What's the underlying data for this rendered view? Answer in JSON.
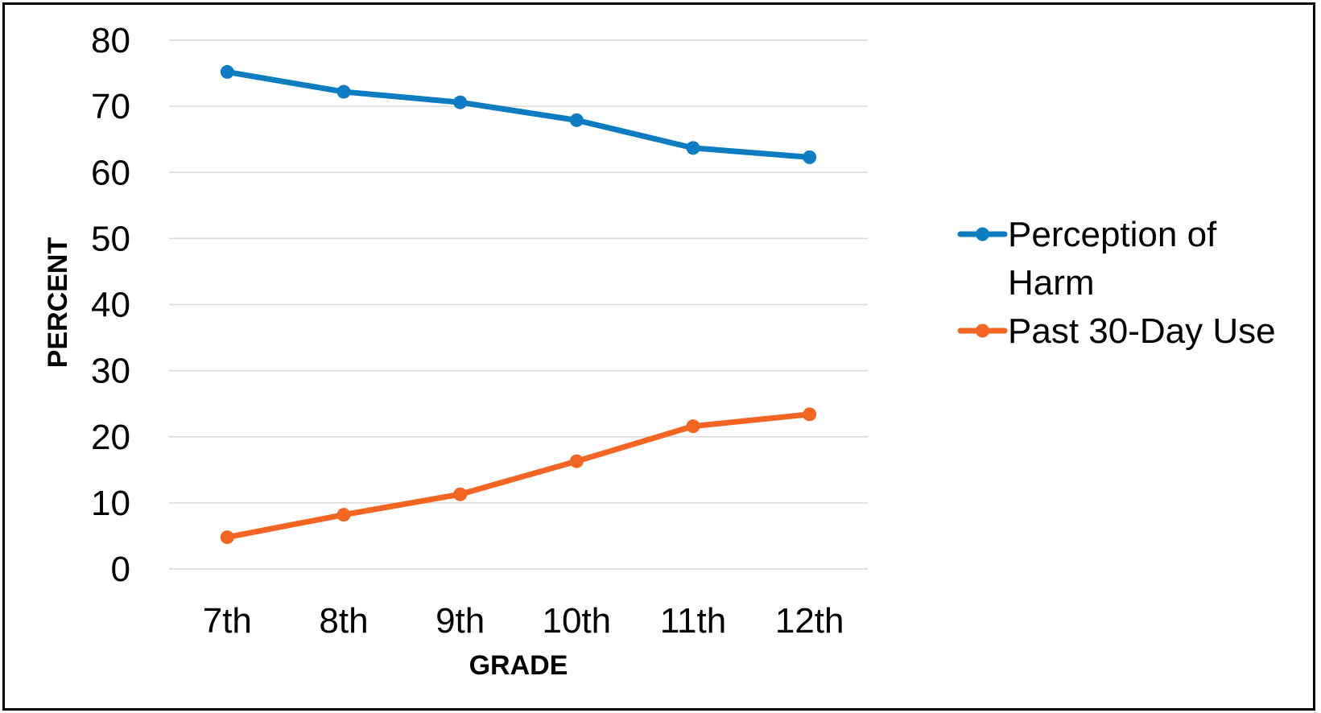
{
  "chart_data": {
    "type": "line",
    "title": "",
    "xlabel": "GRADE",
    "ylabel": "PERCENT",
    "categories": [
      "7th",
      "8th",
      "9th",
      "10th",
      "11th",
      "12th"
    ],
    "ylim": [
      0,
      80
    ],
    "yticks": [
      "0",
      "10",
      "20",
      "30",
      "40",
      "50",
      "60",
      "70",
      "80"
    ],
    "grid": true,
    "legend_position": "right",
    "series": [
      {
        "name": "Perception of Harm",
        "name_lines": [
          "Perception of",
          "Harm"
        ],
        "color": "#0E7CC1",
        "values": [
          75.2,
          72.2,
          70.6,
          67.9,
          63.7,
          62.3
        ]
      },
      {
        "name": "Past 30-Day Use",
        "name_lines": [
          "Past 30-Day Use"
        ],
        "color": "#F26522",
        "values": [
          4.8,
          8.2,
          11.3,
          16.3,
          21.6,
          23.4
        ]
      }
    ]
  }
}
